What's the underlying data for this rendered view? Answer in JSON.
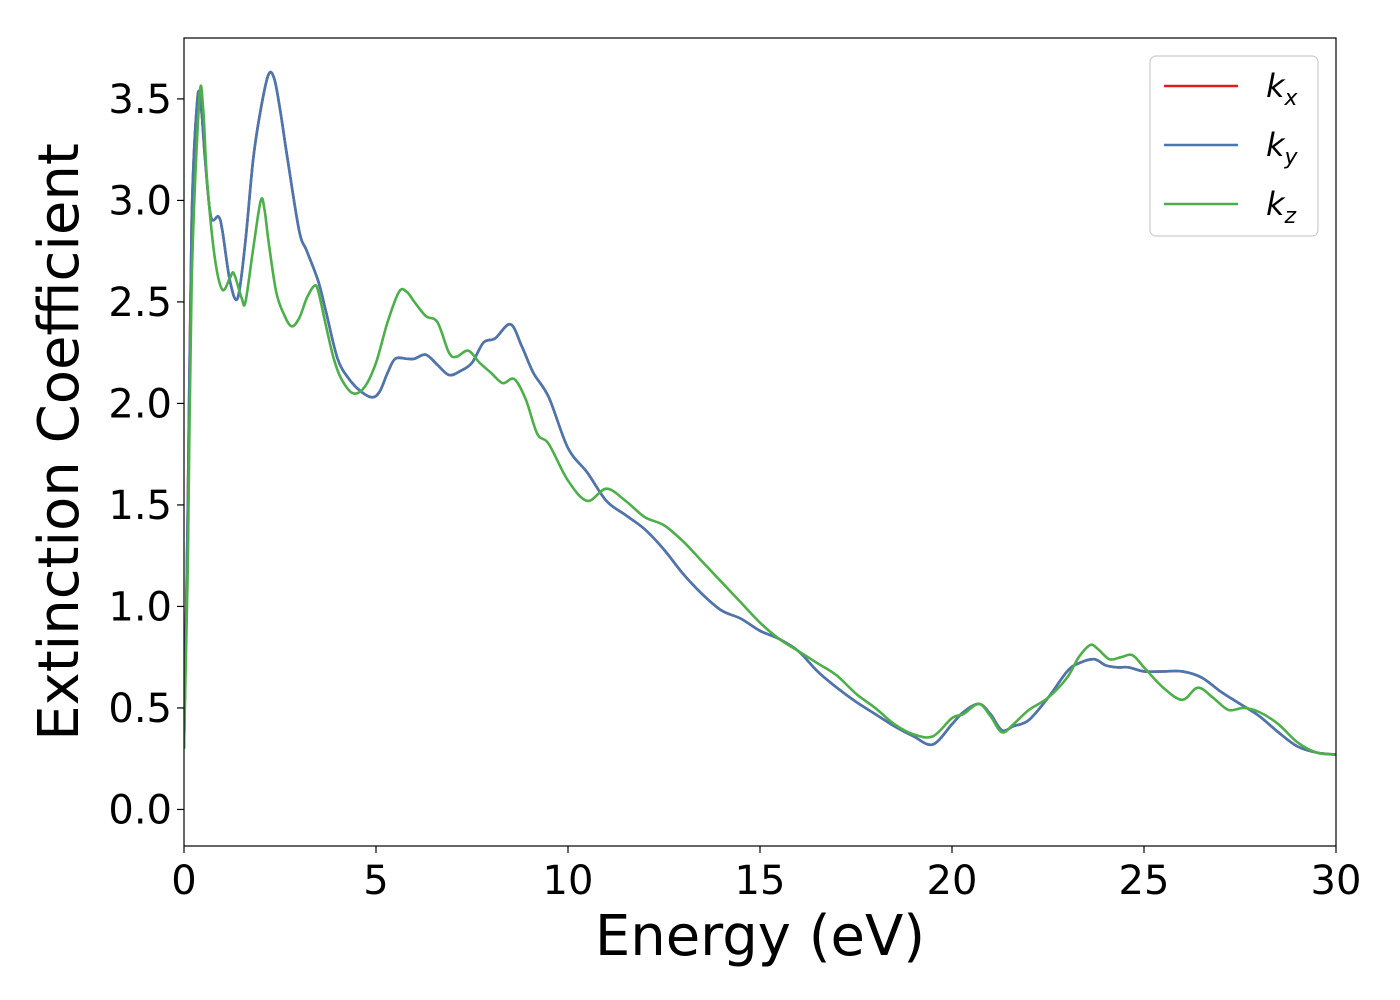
{
  "chart_data": {
    "type": "line",
    "title": "",
    "xlabel": "Energy (eV)",
    "ylabel": "Extinction Coefficient",
    "xlim": [
      0,
      30
    ],
    "ylim": [
      -0.18,
      3.8
    ],
    "xticks": [
      0,
      5,
      10,
      15,
      20,
      25,
      30
    ],
    "xtick_labels": [
      "0",
      "5",
      "10",
      "15",
      "20",
      "25",
      "30"
    ],
    "yticks": [
      0.0,
      0.5,
      1.0,
      1.5,
      2.0,
      2.5,
      3.0,
      3.5
    ],
    "ytick_labels": [
      "0.0",
      "0.5",
      "1.0",
      "1.5",
      "2.0",
      "2.5",
      "3.0",
      "3.5"
    ],
    "grid": false,
    "legend_position": "top-right",
    "series": [
      {
        "name": "kx",
        "legend_base": "k",
        "legend_sub": "x",
        "color": "#e41a1c",
        "x": [
          0,
          0.1,
          0.2,
          0.35,
          0.45,
          0.55,
          0.7,
          0.9,
          1.0,
          1.2,
          1.4,
          1.6,
          1.8,
          2.0,
          2.2,
          2.35,
          2.5,
          2.7,
          3.0,
          3.2,
          3.5,
          3.7,
          4.0,
          4.3,
          4.6,
          4.9,
          5.1,
          5.3,
          5.5,
          5.8,
          6.0,
          6.3,
          6.6,
          6.9,
          7.2,
          7.5,
          7.8,
          8.1,
          8.5,
          8.8,
          9.1,
          9.5,
          10.0,
          10.5,
          11.0,
          11.5,
          12.0,
          12.5,
          13.0,
          13.5,
          14.0,
          14.5,
          15.0,
          15.5,
          16.0,
          16.5,
          17.0,
          17.5,
          18.0,
          18.5,
          19.0,
          19.5,
          20.0,
          20.3,
          20.7,
          21.0,
          21.3,
          21.6,
          22.0,
          22.5,
          23.0,
          23.3,
          23.7,
          24.0,
          24.3,
          24.6,
          25.0,
          25.5,
          26.0,
          26.5,
          27.0,
          27.5,
          28.0,
          28.5,
          29.0,
          29.5,
          30.0
        ],
        "y": [
          0.3,
          1.5,
          2.9,
          3.5,
          3.45,
          3.2,
          2.92,
          2.92,
          2.85,
          2.6,
          2.52,
          2.8,
          3.2,
          3.45,
          3.62,
          3.6,
          3.45,
          3.2,
          2.85,
          2.75,
          2.6,
          2.45,
          2.22,
          2.12,
          2.06,
          2.03,
          2.06,
          2.15,
          2.22,
          2.22,
          2.22,
          2.24,
          2.19,
          2.14,
          2.16,
          2.2,
          2.3,
          2.32,
          2.39,
          2.28,
          2.15,
          2.03,
          1.78,
          1.66,
          1.52,
          1.45,
          1.38,
          1.28,
          1.16,
          1.06,
          0.98,
          0.94,
          0.88,
          0.84,
          0.78,
          0.68,
          0.6,
          0.53,
          0.47,
          0.41,
          0.36,
          0.32,
          0.42,
          0.48,
          0.52,
          0.47,
          0.39,
          0.41,
          0.44,
          0.55,
          0.68,
          0.72,
          0.74,
          0.71,
          0.7,
          0.7,
          0.68,
          0.68,
          0.68,
          0.65,
          0.58,
          0.52,
          0.46,
          0.38,
          0.31,
          0.28,
          0.27
        ]
      },
      {
        "name": "ky",
        "legend_base": "k",
        "legend_sub": "y",
        "color": "#4878b0",
        "x": [
          0,
          0.1,
          0.2,
          0.35,
          0.45,
          0.55,
          0.7,
          0.9,
          1.0,
          1.2,
          1.4,
          1.6,
          1.8,
          2.0,
          2.2,
          2.35,
          2.5,
          2.7,
          3.0,
          3.2,
          3.5,
          3.7,
          4.0,
          4.3,
          4.6,
          4.9,
          5.1,
          5.3,
          5.5,
          5.8,
          6.0,
          6.3,
          6.6,
          6.9,
          7.2,
          7.5,
          7.8,
          8.1,
          8.5,
          8.8,
          9.1,
          9.5,
          10.0,
          10.5,
          11.0,
          11.5,
          12.0,
          12.5,
          13.0,
          13.5,
          14.0,
          14.5,
          15.0,
          15.5,
          16.0,
          16.5,
          17.0,
          17.5,
          18.0,
          18.5,
          19.0,
          19.5,
          20.0,
          20.3,
          20.7,
          21.0,
          21.3,
          21.6,
          22.0,
          22.5,
          23.0,
          23.3,
          23.7,
          24.0,
          24.3,
          24.6,
          25.0,
          25.5,
          26.0,
          26.5,
          27.0,
          27.5,
          28.0,
          28.5,
          29.0,
          29.5,
          30.0
        ],
        "y": [
          0.3,
          1.5,
          2.9,
          3.5,
          3.45,
          3.2,
          2.92,
          2.92,
          2.85,
          2.6,
          2.52,
          2.8,
          3.2,
          3.45,
          3.62,
          3.6,
          3.45,
          3.2,
          2.85,
          2.75,
          2.6,
          2.45,
          2.22,
          2.12,
          2.06,
          2.03,
          2.06,
          2.15,
          2.22,
          2.22,
          2.22,
          2.24,
          2.19,
          2.14,
          2.16,
          2.2,
          2.3,
          2.32,
          2.39,
          2.28,
          2.15,
          2.03,
          1.78,
          1.66,
          1.52,
          1.45,
          1.38,
          1.28,
          1.16,
          1.06,
          0.98,
          0.94,
          0.88,
          0.84,
          0.78,
          0.68,
          0.6,
          0.53,
          0.47,
          0.41,
          0.36,
          0.32,
          0.42,
          0.48,
          0.52,
          0.47,
          0.39,
          0.41,
          0.44,
          0.55,
          0.68,
          0.72,
          0.74,
          0.71,
          0.7,
          0.7,
          0.68,
          0.68,
          0.68,
          0.65,
          0.58,
          0.52,
          0.46,
          0.38,
          0.31,
          0.28,
          0.27
        ]
      },
      {
        "name": "kz",
        "legend_base": "k",
        "legend_sub": "z",
        "color": "#4daf4a",
        "x": [
          0,
          0.1,
          0.2,
          0.4,
          0.5,
          0.6,
          0.8,
          1.0,
          1.2,
          1.3,
          1.5,
          1.6,
          1.8,
          2.0,
          2.1,
          2.2,
          2.4,
          2.6,
          2.8,
          3.0,
          3.2,
          3.4,
          3.5,
          3.7,
          3.9,
          4.1,
          4.4,
          4.7,
          5.0,
          5.3,
          5.6,
          5.8,
          6.0,
          6.3,
          6.6,
          6.9,
          7.1,
          7.4,
          7.7,
          8.0,
          8.3,
          8.6,
          8.9,
          9.2,
          9.5,
          10.0,
          10.5,
          11.0,
          11.5,
          12.0,
          12.5,
          13.0,
          13.5,
          14.0,
          14.5,
          15.0,
          15.5,
          16.0,
          16.5,
          17.0,
          17.5,
          18.0,
          18.5,
          19.0,
          19.5,
          20.0,
          20.3,
          20.7,
          21.0,
          21.3,
          21.6,
          22.0,
          22.5,
          23.0,
          23.3,
          23.6,
          23.8,
          24.1,
          24.4,
          24.7,
          25.0,
          25.5,
          26.0,
          26.4,
          26.8,
          27.2,
          27.6,
          28.0,
          28.5,
          29.0,
          29.5,
          30.0
        ],
        "y": [
          0.3,
          1.2,
          2.6,
          3.5,
          3.45,
          3.1,
          2.72,
          2.56,
          2.62,
          2.64,
          2.52,
          2.5,
          2.76,
          3.0,
          2.95,
          2.8,
          2.55,
          2.44,
          2.38,
          2.42,
          2.52,
          2.58,
          2.55,
          2.38,
          2.22,
          2.12,
          2.05,
          2.08,
          2.2,
          2.4,
          2.55,
          2.55,
          2.5,
          2.43,
          2.4,
          2.25,
          2.23,
          2.26,
          2.2,
          2.15,
          2.1,
          2.12,
          2.02,
          1.85,
          1.8,
          1.62,
          1.52,
          1.58,
          1.52,
          1.44,
          1.4,
          1.32,
          1.22,
          1.12,
          1.02,
          0.92,
          0.84,
          0.78,
          0.72,
          0.66,
          0.57,
          0.5,
          0.42,
          0.37,
          0.36,
          0.45,
          0.47,
          0.52,
          0.46,
          0.38,
          0.42,
          0.49,
          0.55,
          0.65,
          0.75,
          0.81,
          0.79,
          0.74,
          0.75,
          0.76,
          0.7,
          0.6,
          0.54,
          0.6,
          0.55,
          0.49,
          0.5,
          0.48,
          0.42,
          0.33,
          0.28,
          0.27
        ]
      }
    ]
  }
}
